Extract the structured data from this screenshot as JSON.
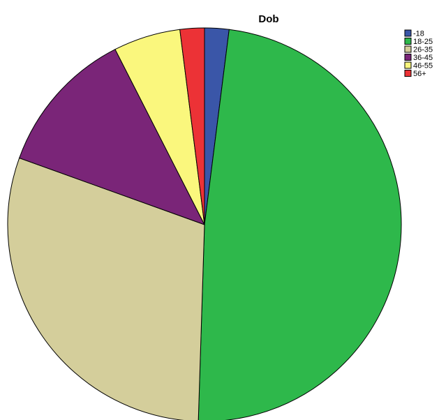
{
  "chart_data": {
    "type": "pie",
    "title": "Dob",
    "legend_position": "top-right",
    "start_angle_deg": 0,
    "direction": "clockwise",
    "slices": [
      {
        "label": "-18",
        "value": 2.0,
        "color": "#3A56A8"
      },
      {
        "label": "18-25",
        "value": 48.5,
        "color": "#2EB84B"
      },
      {
        "label": "26-35",
        "value": 30.0,
        "color": "#D4CE9B"
      },
      {
        "label": "36-45",
        "value": 12.0,
        "color": "#7A2578"
      },
      {
        "label": "46-55",
        "value": 5.5,
        "color": "#FAF77D"
      },
      {
        "label": "56+",
        "value": 2.0,
        "color": "#EC3236"
      }
    ]
  }
}
